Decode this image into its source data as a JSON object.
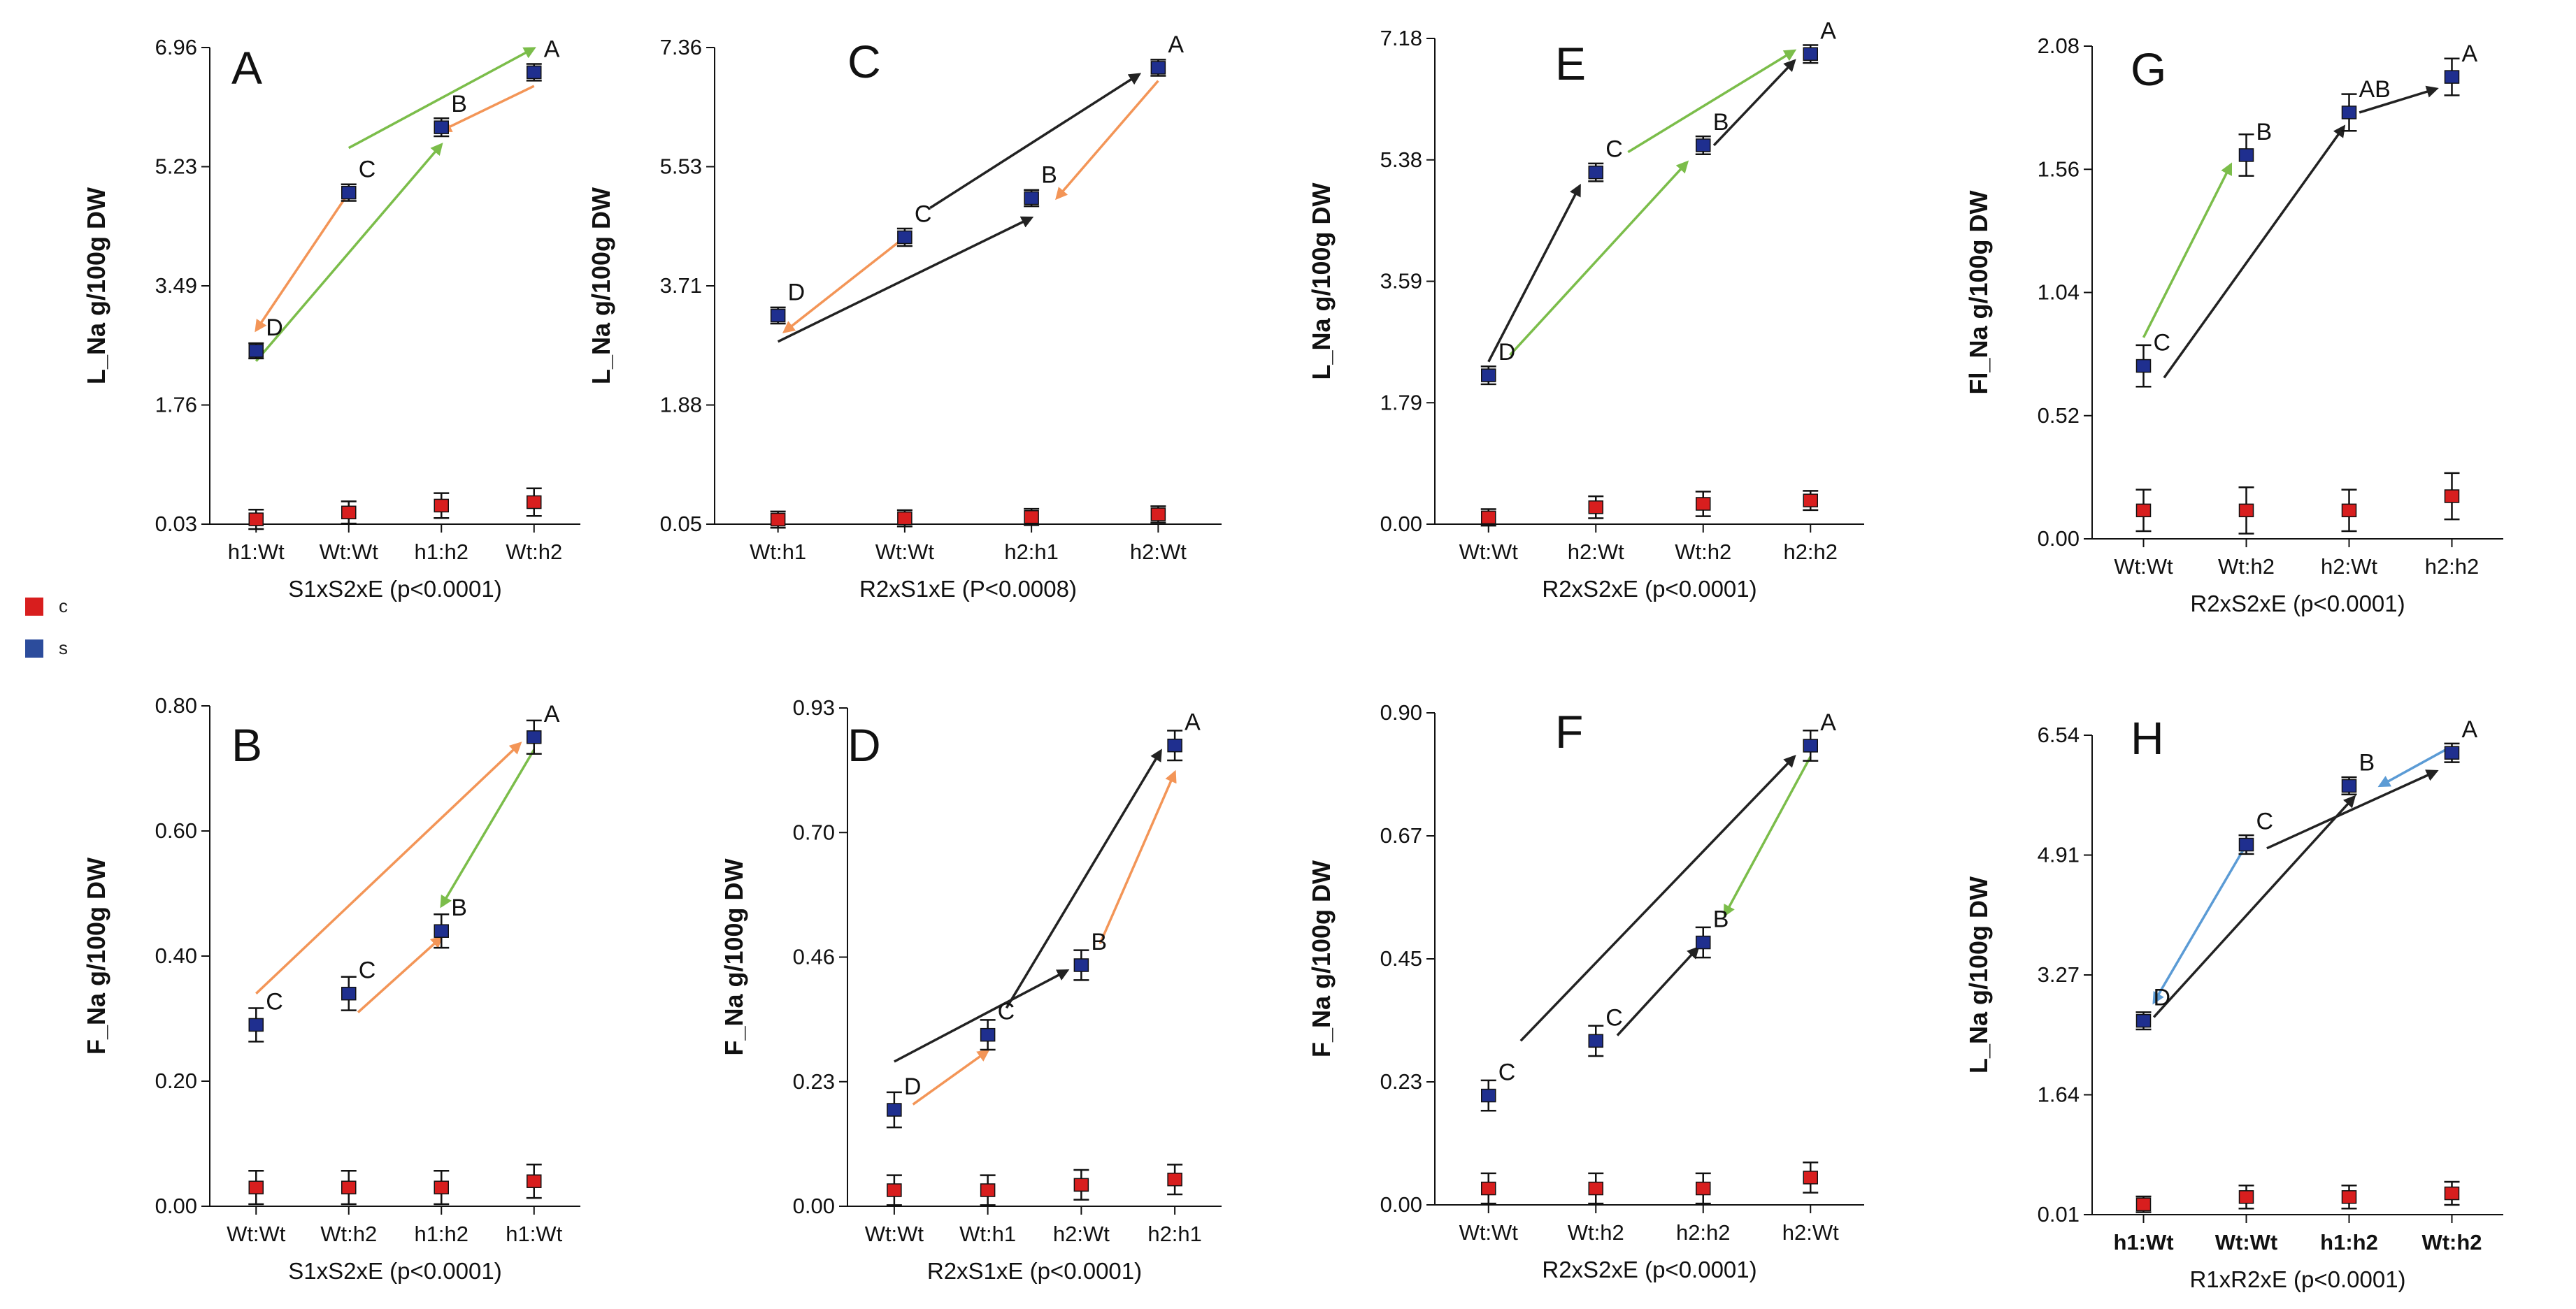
{
  "colors": {
    "c": "#d81e1e",
    "s": "#1f2f8f",
    "green": "#7bbd4a",
    "orange": "#f39557",
    "black": "#222222",
    "blue": "#5b9bd5"
  },
  "legend": [
    {
      "key": "c",
      "label": "c"
    },
    {
      "key": "s",
      "label": "s"
    }
  ],
  "chart_data": [
    {
      "id": "A",
      "type": "scatter",
      "panel_label": "A",
      "ylabel": "L_Na  g/100g DW",
      "xlabel": "S1xS2xE (p<0.0001)",
      "yticks": [
        "0.03",
        "1.76",
        "3.49",
        "5.23",
        "6.96"
      ],
      "ylim": [
        0.03,
        6.96
      ],
      "categories": [
        "h1:Wt",
        "Wt:Wt",
        "h1:h2",
        "Wt:h2"
      ],
      "series": [
        {
          "name": "s",
          "values": [
            2.55,
            4.85,
            5.8,
            6.6
          ],
          "errors": [
            0.05,
            0.06,
            0.07,
            0.06
          ]
        },
        {
          "name": "c",
          "values": [
            0.1,
            0.2,
            0.3,
            0.35
          ],
          "errors": [
            0.08,
            0.1,
            0.12,
            0.14
          ]
        }
      ],
      "letters": [
        {
          "cat": 0,
          "text": "D"
        },
        {
          "cat": 1,
          "text": "C"
        },
        {
          "cat": 2,
          "text": "B"
        },
        {
          "cat": 3,
          "text": "A"
        }
      ],
      "arrows": [
        {
          "from": [
            1,
            4.85
          ],
          "to": [
            0,
            2.85
          ],
          "color": "orange"
        },
        {
          "from": [
            0,
            2.4
          ],
          "to": [
            2,
            5.55
          ],
          "color": "green"
        },
        {
          "from": [
            3,
            6.4
          ],
          "to": [
            2,
            5.75
          ],
          "color": "orange"
        },
        {
          "from": [
            1,
            5.5
          ],
          "to": [
            3,
            6.95
          ],
          "color": "green"
        }
      ]
    },
    {
      "id": "B",
      "type": "scatter",
      "panel_label": "B",
      "ylabel": "F_Na  g/100g DW",
      "xlabel": "S1xS2xE (p<0.0001)",
      "yticks": [
        "0.00",
        "0.20",
        "0.40",
        "0.60",
        "0.80"
      ],
      "ylim": [
        0.0,
        0.8
      ],
      "categories": [
        "Wt:Wt",
        "Wt:h2",
        "h1:h2",
        "h1:Wt"
      ],
      "series": [
        {
          "name": "s",
          "values": [
            0.29,
            0.34,
            0.44,
            0.75
          ],
          "errors": [
            0.02,
            0.02,
            0.02,
            0.02
          ]
        },
        {
          "name": "c",
          "values": [
            0.03,
            0.03,
            0.03,
            0.04
          ],
          "errors": [
            0.02,
            0.02,
            0.02,
            0.02
          ]
        }
      ],
      "letters": [
        {
          "cat": 0,
          "text": "C"
        },
        {
          "cat": 1,
          "text": "C"
        },
        {
          "cat": 2,
          "text": "B"
        },
        {
          "cat": 3,
          "text": "A"
        }
      ],
      "arrows": [
        {
          "from": [
            0,
            0.34
          ],
          "to": [
            2.85,
            0.74
          ],
          "color": "orange"
        },
        {
          "from": [
            3,
            0.73
          ],
          "to": [
            2,
            0.48
          ],
          "color": "green"
        },
        {
          "from": [
            1.1,
            0.31
          ],
          "to": [
            2,
            0.43
          ],
          "color": "orange"
        }
      ]
    },
    {
      "id": "C",
      "type": "scatter",
      "panel_label": "C",
      "ylabel": "L_Na  g/100g DW",
      "xlabel": "R2xS1xE (P<0.0008)",
      "yticks": [
        "0.05",
        "1.88",
        "3.71",
        "5.53",
        "7.36"
      ],
      "ylim": [
        0.05,
        7.36
      ],
      "categories": [
        "Wt:h1",
        "Wt:Wt",
        "h2:h1",
        "h2:Wt"
      ],
      "series": [
        {
          "name": "s",
          "values": [
            3.25,
            4.45,
            5.05,
            7.05
          ],
          "errors": [
            0.06,
            0.07,
            0.06,
            0.06
          ]
        },
        {
          "name": "c",
          "values": [
            0.12,
            0.14,
            0.16,
            0.2
          ],
          "errors": [
            0.06,
            0.06,
            0.06,
            0.06
          ]
        }
      ],
      "letters": [
        {
          "cat": 0,
          "text": "D"
        },
        {
          "cat": 1,
          "text": "C"
        },
        {
          "cat": 2,
          "text": "B"
        },
        {
          "cat": 3,
          "text": "A"
        }
      ],
      "arrows": [
        {
          "from": [
            1,
            4.45
          ],
          "to": [
            0.05,
            3.0
          ],
          "color": "orange"
        },
        {
          "from": [
            3,
            6.85
          ],
          "to": [
            2.2,
            5.05
          ],
          "color": "orange"
        },
        {
          "from": [
            0,
            2.85
          ],
          "to": [
            2,
            4.75
          ],
          "color": "black"
        },
        {
          "from": [
            1.2,
            4.9
          ],
          "to": [
            2.85,
            6.95
          ],
          "color": "black"
        }
      ]
    },
    {
      "id": "D",
      "type": "scatter",
      "panel_label": "D",
      "ylabel": "F_Na  g/100g DW",
      "xlabel": "R2xS1xE (p<0.0001)",
      "yticks": [
        "0.00",
        "0.23",
        "0.46",
        "0.70",
        "0.93"
      ],
      "ylim": [
        0.0,
        0.93
      ],
      "categories": [
        "Wt:Wt",
        "Wt:h1",
        "h2:Wt",
        "h2:h1"
      ],
      "series": [
        {
          "name": "s",
          "values": [
            0.18,
            0.32,
            0.45,
            0.86
          ],
          "errors": [
            0.025,
            0.02,
            0.02,
            0.02
          ]
        },
        {
          "name": "c",
          "values": [
            0.03,
            0.03,
            0.04,
            0.05
          ],
          "errors": [
            0.02,
            0.02,
            0.02,
            0.02
          ]
        }
      ],
      "letters": [
        {
          "cat": 0,
          "text": "D"
        },
        {
          "cat": 1,
          "text": "C"
        },
        {
          "cat": 2,
          "text": "B"
        },
        {
          "cat": 3,
          "text": "A"
        }
      ],
      "arrows": [
        {
          "from": [
            0.2,
            0.19
          ],
          "to": [
            1,
            0.29
          ],
          "color": "orange"
        },
        {
          "from": [
            0,
            0.27
          ],
          "to": [
            1.85,
            0.44
          ],
          "color": "black"
        },
        {
          "from": [
            1.2,
            0.37
          ],
          "to": [
            2.85,
            0.85
          ],
          "color": "black"
        },
        {
          "from": [
            2.2,
            0.49
          ],
          "to": [
            3,
            0.81
          ],
          "color": "orange"
        }
      ]
    },
    {
      "id": "E",
      "type": "scatter",
      "panel_label": "E",
      "ylabel": "L_Na  g/100g DW",
      "xlabel": "R2xS2xE (p<0.0001)",
      "yticks": [
        "0.00",
        "1.79",
        "3.59",
        "5.38",
        "7.18"
      ],
      "ylim": [
        0.0,
        7.18
      ],
      "categories": [
        "Wt:Wt",
        "h2:Wt",
        "Wt:h2",
        "h2:h2"
      ],
      "series": [
        {
          "name": "s",
          "values": [
            2.2,
            5.2,
            5.6,
            6.95
          ],
          "errors": [
            0.07,
            0.07,
            0.07,
            0.07
          ]
        },
        {
          "name": "c",
          "values": [
            0.1,
            0.25,
            0.3,
            0.35
          ],
          "errors": [
            0.06,
            0.1,
            0.12,
            0.08
          ]
        }
      ],
      "letters": [
        {
          "cat": 0,
          "text": "D"
        },
        {
          "cat": 1,
          "text": "C"
        },
        {
          "cat": 2,
          "text": "B"
        },
        {
          "cat": 3,
          "text": "A"
        }
      ],
      "arrows": [
        {
          "from": [
            0,
            2.4
          ],
          "to": [
            0.85,
            5.0
          ],
          "color": "black"
        },
        {
          "from": [
            0.2,
            2.5
          ],
          "to": [
            1.85,
            5.35
          ],
          "color": "green"
        },
        {
          "from": [
            1.3,
            5.5
          ],
          "to": [
            2.85,
            7.0
          ],
          "color": "green"
        },
        {
          "from": [
            2.1,
            5.6
          ],
          "to": [
            2.85,
            6.85
          ],
          "color": "black"
        }
      ]
    },
    {
      "id": "F",
      "type": "scatter",
      "panel_label": "F",
      "ylabel": "F_Na  g/100g DW",
      "xlabel": "R2xS2xE (p<0.0001)",
      "yticks": [
        "0.00",
        "0.23",
        "0.45",
        "0.67",
        "0.90"
      ],
      "ylim": [
        0.0,
        0.9
      ],
      "categories": [
        "Wt:Wt",
        "Wt:h2",
        "h2:h2",
        "h2:Wt"
      ],
      "series": [
        {
          "name": "s",
          "values": [
            0.2,
            0.3,
            0.48,
            0.84
          ],
          "errors": [
            0.02,
            0.02,
            0.02,
            0.02
          ]
        },
        {
          "name": "c",
          "values": [
            0.03,
            0.03,
            0.03,
            0.05
          ],
          "errors": [
            0.02,
            0.02,
            0.02,
            0.02
          ]
        }
      ],
      "letters": [
        {
          "cat": 0,
          "text": "C"
        },
        {
          "cat": 1,
          "text": "C"
        },
        {
          "cat": 2,
          "text": "B"
        },
        {
          "cat": 3,
          "text": "A"
        }
      ],
      "arrows": [
        {
          "from": [
            0.3,
            0.3
          ],
          "to": [
            2.85,
            0.82
          ],
          "color": "black"
        },
        {
          "from": [
            1.2,
            0.31
          ],
          "to": [
            1.95,
            0.47
          ],
          "color": "black"
        },
        {
          "from": [
            3,
            0.82
          ],
          "to": [
            2.2,
            0.53
          ],
          "color": "green"
        }
      ]
    },
    {
      "id": "G",
      "type": "scatter",
      "panel_label": "G",
      "ylabel": "Fl_Na  g/100g DW",
      "xlabel": "R2xS2xE (p<0.0001)",
      "yticks": [
        "0.00",
        "0.52",
        "1.04",
        "1.56",
        "2.08"
      ],
      "ylim": [
        0.0,
        2.08
      ],
      "categories": [
        "Wt:Wt",
        "Wt:h2",
        "h2:Wt",
        "h2:h2"
      ],
      "series": [
        {
          "name": "s",
          "values": [
            0.73,
            1.62,
            1.8,
            1.95
          ],
          "errors": [
            0.07,
            0.07,
            0.06,
            0.06
          ]
        },
        {
          "name": "c",
          "values": [
            0.12,
            0.12,
            0.12,
            0.18
          ],
          "errors": [
            0.07,
            0.08,
            0.07,
            0.08
          ]
        }
      ],
      "letters": [
        {
          "cat": 0,
          "text": "C"
        },
        {
          "cat": 1,
          "text": "B"
        },
        {
          "cat": 2,
          "text": "AB"
        },
        {
          "cat": 3,
          "text": "A"
        }
      ],
      "arrows": [
        {
          "from": [
            0,
            0.85
          ],
          "to": [
            0.85,
            1.58
          ],
          "color": "green"
        },
        {
          "from": [
            0.2,
            0.68
          ],
          "to": [
            1.95,
            1.74
          ],
          "color": "black"
        },
        {
          "from": [
            2.1,
            1.8
          ],
          "to": [
            2.85,
            1.9
          ],
          "color": "black"
        }
      ]
    },
    {
      "id": "H",
      "type": "scatter",
      "panel_label": "H",
      "ylabel": "L_Na  g/100g DW",
      "xlabel": "R1xR2xE (p<0.0001)",
      "yticks": [
        "0.01",
        "1.64",
        "3.27",
        "4.91",
        "6.54"
      ],
      "ylim": [
        0.01,
        6.54
      ],
      "categories": [
        "h1:Wt",
        "Wt:Wt",
        "h1:h2",
        "Wt:h2"
      ],
      "series": [
        {
          "name": "s",
          "values": [
            2.65,
            5.05,
            5.85,
            6.3
          ],
          "errors": [
            0.06,
            0.07,
            0.06,
            0.07
          ]
        },
        {
          "name": "c",
          "values": [
            0.15,
            0.25,
            0.25,
            0.3
          ],
          "errors": [
            0.05,
            0.1,
            0.1,
            0.1
          ]
        }
      ],
      "letters": [
        {
          "cat": 0,
          "text": "D"
        },
        {
          "cat": 1,
          "text": "C"
        },
        {
          "cat": 2,
          "text": "B"
        },
        {
          "cat": 3,
          "text": "A"
        }
      ],
      "arrows": [
        {
          "from": [
            1,
            5.05
          ],
          "to": [
            0.1,
            2.9
          ],
          "color": "blue"
        },
        {
          "from": [
            0.1,
            2.7
          ],
          "to": [
            2.05,
            5.7
          ],
          "color": "black"
        },
        {
          "from": [
            1.2,
            5.0
          ],
          "to": [
            2.85,
            6.05
          ],
          "color": "black"
        },
        {
          "from": [
            2.95,
            6.35
          ],
          "to": [
            2.3,
            5.85
          ],
          "color": "blue"
        }
      ]
    }
  ]
}
